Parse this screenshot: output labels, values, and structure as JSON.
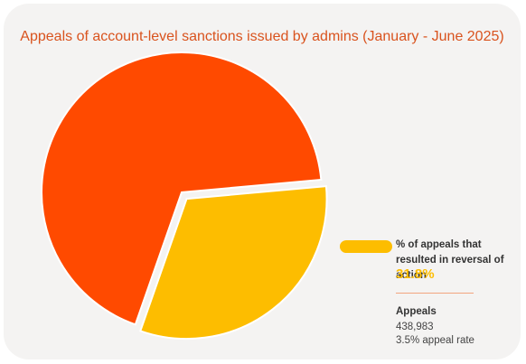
{
  "chart_data": {
    "type": "pie",
    "title": "Appeals of account-level sanctions issued by admins (January - June 2025)",
    "slices": [
      {
        "label": "",
        "value": 68.2,
        "color": "#ff4a00"
      },
      {
        "label": "% of appeals that resulted in reversal of action",
        "value": 31.8,
        "color": "#fdbd00"
      }
    ],
    "legend": {
      "placement": "right",
      "label": "% of appeals that resulted in reversal of action",
      "value_text": "31.8%"
    }
  },
  "stats": {
    "title": "Appeals",
    "count": "438,983",
    "rate": "3.5% appeal rate"
  },
  "colors": {
    "title": "#d9531e",
    "main_slice": "#ff4a00",
    "highlight_slice": "#fdbd00",
    "divider": "#f2a57f",
    "card_bg": "#f4f3f2"
  }
}
